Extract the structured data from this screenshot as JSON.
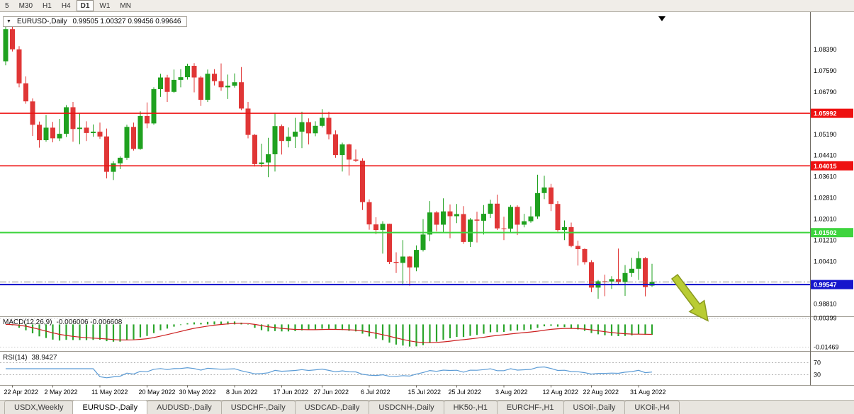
{
  "toolbar": {
    "timeframes": [
      {
        "label": "5",
        "active": false
      },
      {
        "label": "M30",
        "active": false
      },
      {
        "label": "H1",
        "active": false
      },
      {
        "label": "H4",
        "active": false
      },
      {
        "label": "D1",
        "active": true
      },
      {
        "label": "W1",
        "active": false
      },
      {
        "label": "MN",
        "active": false
      }
    ]
  },
  "chart": {
    "title": "EURUSD-,Daily",
    "ohlc_text": "0.99505 1.00327 0.99456 0.99646"
  },
  "indicators": {
    "macd": {
      "label": "MACD(12,26,9)",
      "values_text": "-0.006006 -0.006608",
      "axis_labels": [
        {
          "value": 0.00399,
          "text": "0.00399"
        },
        {
          "value": -0.01469,
          "text": "-0.01469"
        }
      ]
    },
    "rsi": {
      "label": "RSI(14)",
      "value_text": "38.9427",
      "levels": [
        {
          "value": 70,
          "text": "70"
        },
        {
          "value": 30,
          "text": "30"
        }
      ]
    }
  },
  "colors": {
    "candle_up": "#1fa11f",
    "candle_down": "#e03636",
    "macd_hist": "#2ba52b",
    "macd_signal": "#cc2020",
    "rsi_line": "#5b9bd5",
    "hline_red": "#ee1111",
    "hline_green": "#3ed43e",
    "hline_blue": "#1616cc",
    "arrow": "#b9cc33",
    "arrow_outline": "#8a9a20"
  },
  "chart_data": {
    "type": "candlestick",
    "symbol": "EURUSD-",
    "timeframe": "Daily",
    "price_range": [
      0.9835,
      1.0975
    ],
    "y_axis_labels": [
      "1.08390",
      "1.07590",
      "1.06790",
      "1.05190",
      "1.04410",
      "1.03610",
      "1.02810",
      "1.02010",
      "1.01210",
      "1.00410",
      "0.98810"
    ],
    "hlines": [
      {
        "value": 1.05992,
        "badge": "1.05992",
        "color": "#ee1111",
        "width": 1.6
      },
      {
        "value": 1.04015,
        "badge": "1.04015",
        "color": "#ee1111",
        "width": 1.6
      },
      {
        "value": 1.01502,
        "badge": "1.01502",
        "color": "#3ed43e",
        "width": 2
      },
      {
        "value": 0.99547,
        "badge": "0.99547",
        "color": "#1616cc",
        "width": 2.2
      }
    ],
    "last_price": 0.99646,
    "x_ticks": [
      {
        "index": 1,
        "label": "22 Apr 2022"
      },
      {
        "index": 7,
        "label": "2 May 2022"
      },
      {
        "index": 14,
        "label": "11 May 2022"
      },
      {
        "index": 21,
        "label": "20 May 2022"
      },
      {
        "index": 27,
        "label": "30 May 2022"
      },
      {
        "index": 34,
        "label": "8 Jun 2022"
      },
      {
        "index": 41,
        "label": "17 Jun 2022"
      },
      {
        "index": 47,
        "label": "27 Jun 2022"
      },
      {
        "index": 54,
        "label": "6 Jul 2022"
      },
      {
        "index": 61,
        "label": "15 Jul 2022"
      },
      {
        "index": 67,
        "label": "25 Jul 2022"
      },
      {
        "index": 74,
        "label": "3 Aug 2022"
      },
      {
        "index": 81,
        "label": "12 Aug 2022"
      },
      {
        "index": 87,
        "label": "22 Aug 2022"
      },
      {
        "index": 94,
        "label": "31 Aug 2022"
      }
    ],
    "candles": [
      [
        1.0795,
        1.094,
        1.078,
        1.0916
      ],
      [
        1.0916,
        1.0928,
        1.0832,
        1.084
      ],
      [
        1.084,
        1.0852,
        1.0697,
        1.0712
      ],
      [
        1.0712,
        1.0738,
        1.0635,
        1.0644
      ],
      [
        1.0644,
        1.0655,
        1.0514,
        1.0556
      ],
      [
        1.0556,
        1.0568,
        1.047,
        1.0498
      ],
      [
        1.0498,
        1.0593,
        1.0492,
        1.0545
      ],
      [
        1.0545,
        1.0567,
        1.049,
        1.0505
      ],
      [
        1.0505,
        1.0578,
        1.0495,
        1.0522
      ],
      [
        1.0522,
        1.063,
        1.051,
        1.0622
      ],
      [
        1.0622,
        1.0642,
        1.0492,
        1.054
      ],
      [
        1.054,
        1.0599,
        1.0483,
        1.0545
      ],
      [
        1.0545,
        1.0569,
        1.0495,
        1.0525
      ],
      [
        1.0525,
        1.0557,
        1.0511,
        1.053
      ],
      [
        1.053,
        1.0564,
        1.0503,
        1.0512
      ],
      [
        1.0512,
        1.0542,
        1.0354,
        1.0379
      ],
      [
        1.0379,
        1.0419,
        1.0348,
        1.0411
      ],
      [
        1.0411,
        1.0437,
        1.0389,
        1.0432
      ],
      [
        1.0432,
        1.0556,
        1.0424,
        1.0548
      ],
      [
        1.0548,
        1.0564,
        1.0459,
        1.0465
      ],
      [
        1.0465,
        1.0607,
        1.0462,
        1.0589
      ],
      [
        1.0589,
        1.064,
        1.0543,
        1.0561
      ],
      [
        1.0561,
        1.0697,
        1.0556,
        1.069
      ],
      [
        1.069,
        1.0748,
        1.0661,
        1.0734
      ],
      [
        1.0734,
        1.0744,
        1.0642,
        1.068
      ],
      [
        1.068,
        1.0764,
        1.0676,
        1.0725
      ],
      [
        1.0725,
        1.0765,
        1.0697,
        1.0735
      ],
      [
        1.0735,
        1.0786,
        1.0726,
        1.0778
      ],
      [
        1.0778,
        1.0788,
        1.0678,
        1.0734
      ],
      [
        1.0734,
        1.074,
        1.0627,
        1.065
      ],
      [
        1.065,
        1.0764,
        1.0642,
        1.0748
      ],
      [
        1.0748,
        1.0765,
        1.0704,
        1.072
      ],
      [
        1.072,
        1.0787,
        1.0684,
        1.0697
      ],
      [
        1.0697,
        1.0745,
        1.0653,
        1.0703
      ],
      [
        1.0703,
        1.0749,
        1.0696,
        1.0716
      ],
      [
        1.0716,
        1.0773,
        1.0611,
        1.0617
      ],
      [
        1.0617,
        1.0642,
        1.0505,
        1.0518
      ],
      [
        1.0518,
        1.0521,
        1.0399,
        1.0408
      ],
      [
        1.0408,
        1.0485,
        1.0397,
        1.0414
      ],
      [
        1.0414,
        1.0507,
        1.0359,
        1.0445
      ],
      [
        1.0445,
        1.0601,
        1.038,
        1.0551
      ],
      [
        1.0551,
        1.0557,
        1.0444,
        1.0495
      ],
      [
        1.0495,
        1.0546,
        1.0471,
        1.0511
      ],
      [
        1.0511,
        1.0582,
        1.0469,
        1.053
      ],
      [
        1.053,
        1.0605,
        1.0468,
        1.0566
      ],
      [
        1.0566,
        1.058,
        1.0482,
        1.0524
      ],
      [
        1.0524,
        1.0569,
        1.0513,
        1.0552
      ],
      [
        1.0552,
        1.0615,
        1.0546,
        1.0582
      ],
      [
        1.0582,
        1.0605,
        1.0501,
        1.052
      ],
      [
        1.052,
        1.0535,
        1.0432,
        1.0442
      ],
      [
        1.0442,
        1.0489,
        1.038,
        1.0482
      ],
      [
        1.0482,
        1.0485,
        1.0365,
        1.0425
      ],
      [
        1.0425,
        1.0463,
        1.0416,
        1.0421
      ],
      [
        1.0421,
        1.043,
        1.0235,
        1.0265
      ],
      [
        1.0265,
        1.0275,
        1.0161,
        1.0181
      ],
      [
        1.0181,
        1.0208,
        1.0144,
        1.016
      ],
      [
        1.016,
        1.0193,
        1.0071,
        1.0183
      ],
      [
        1.0183,
        1.0184,
        1.0032,
        1.004
      ],
      [
        1.004,
        1.0076,
        0.9998,
        1.0036
      ],
      [
        1.0036,
        1.0122,
        0.9952,
        1.006
      ],
      [
        1.006,
        1.0062,
        0.995,
        1.0019
      ],
      [
        1.0019,
        1.0102,
        1.0005,
        1.0085
      ],
      [
        1.0085,
        1.0201,
        1.0079,
        1.0143
      ],
      [
        1.0143,
        1.0269,
        1.0118,
        1.0226
      ],
      [
        1.0226,
        1.0231,
        1.0155,
        1.018
      ],
      [
        1.018,
        1.0279,
        1.0152,
        1.023
      ],
      [
        1.023,
        1.0256,
        1.0129,
        1.0212
      ],
      [
        1.0212,
        1.0258,
        1.0186,
        1.022
      ],
      [
        1.022,
        1.025,
        1.0108,
        1.0115
      ],
      [
        1.0115,
        1.0205,
        1.0096,
        1.0199
      ],
      [
        1.0199,
        1.0229,
        1.0113,
        1.0195
      ],
      [
        1.0195,
        1.0254,
        1.0143,
        1.0221
      ],
      [
        1.0221,
        1.0274,
        1.0205,
        1.0259
      ],
      [
        1.0259,
        1.0293,
        1.016,
        1.0166
      ],
      [
        1.0166,
        1.021,
        1.0122,
        1.0165
      ],
      [
        1.0165,
        1.0254,
        1.0151,
        1.0247
      ],
      [
        1.0247,
        1.0253,
        1.0141,
        1.018
      ],
      [
        1.018,
        1.0221,
        1.017,
        1.0193
      ],
      [
        1.0193,
        1.0249,
        1.0187,
        1.0211
      ],
      [
        1.0211,
        1.0368,
        1.0202,
        1.0299
      ],
      [
        1.0299,
        1.0364,
        1.0276,
        1.032
      ],
      [
        1.032,
        1.0334,
        1.0231,
        1.0258
      ],
      [
        1.0258,
        1.0269,
        1.0154,
        1.016
      ],
      [
        1.016,
        1.0196,
        1.0122,
        1.0171
      ],
      [
        1.0171,
        1.0188,
        1.0095,
        1.01
      ],
      [
        1.01,
        1.012,
        1.0026,
        1.0088
      ],
      [
        1.0088,
        1.0091,
        1.003,
        1.0039
      ],
      [
        1.0039,
        1.0046,
        0.9926,
        0.9943
      ],
      [
        0.9943,
        0.9972,
        0.9901,
        0.9967
      ],
      [
        0.9967,
        0.9992,
        0.9911,
        0.9966
      ],
      [
        0.9966,
        0.9986,
        0.9938,
        0.9975
      ],
      [
        0.9975,
        1.009,
        0.9954,
        0.9964
      ],
      [
        0.9964,
        1.0028,
        0.9912,
        0.9998
      ],
      [
        0.9998,
        1.0055,
        0.9984,
        1.0014
      ],
      [
        1.0014,
        1.0079,
        0.9972,
        1.0054
      ],
      [
        1.0054,
        1.0058,
        0.991,
        0.9945
      ],
      [
        0.99505,
        1.00327,
        0.99456,
        0.99646
      ]
    ]
  },
  "tabs": [
    {
      "label": "USDX,Weekly",
      "active": false
    },
    {
      "label": "EURUSD-,Daily",
      "active": true
    },
    {
      "label": "AUDUSD-,Daily",
      "active": false
    },
    {
      "label": "USDCHF-,Daily",
      "active": false
    },
    {
      "label": "USDCAD-,Daily",
      "active": false
    },
    {
      "label": "USDCNH-,Daily",
      "active": false
    },
    {
      "label": "HK50-,H1",
      "active": false
    },
    {
      "label": "EURCHF-,H1",
      "active": false
    },
    {
      "label": "USOil-,Daily",
      "active": false
    },
    {
      "label": "UKOil-,H4",
      "active": false
    }
  ]
}
